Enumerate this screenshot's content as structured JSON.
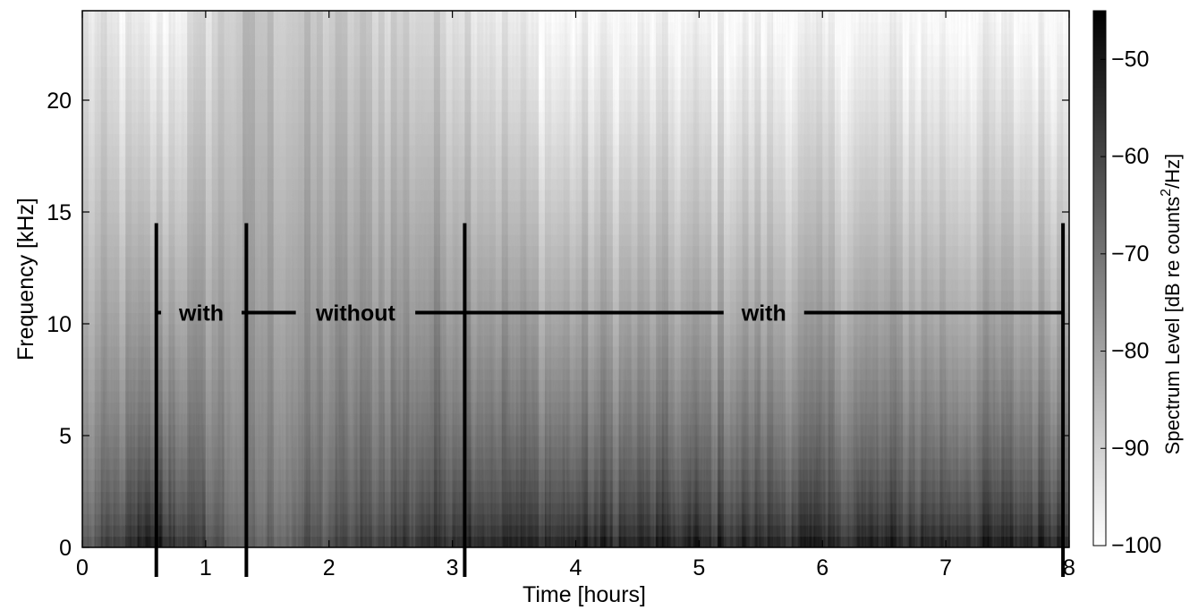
{
  "chart_data": {
    "type": "heatmap",
    "title": "",
    "xlabel": "Time [hours]",
    "ylabel": "Frequency [kHz]",
    "xlim": [
      0,
      8
    ],
    "ylim": [
      0,
      24
    ],
    "xticks": [
      "0",
      "1",
      "2",
      "3",
      "4",
      "5",
      "6",
      "7",
      "8"
    ],
    "yticks": [
      "0",
      "5",
      "10",
      "15",
      "20"
    ],
    "colorbar": {
      "label": "Spectrum Level [dB re counts",
      "label_superscript": "2",
      "label_suffix": "/Hz]",
      "range": [
        -100,
        -45
      ],
      "ticks": [
        "-100",
        "-90",
        "-80",
        "-70",
        "-60",
        "-50"
      ],
      "colormap": "gray-reversed"
    },
    "segment_markers_hours": [
      0.6,
      1.33,
      3.1,
      7.95
    ],
    "annotation_line_khz": 10.5,
    "annotations": [
      {
        "label": "with",
        "start_hours": 0.6,
        "end_hours": 1.33
      },
      {
        "label": "without",
        "start_hours": 1.33,
        "end_hours": 3.1
      },
      {
        "label": "with",
        "start_hours": 3.1,
        "end_hours": 7.95
      }
    ],
    "intensity_profile": [
      {
        "t_hours": 0.0,
        "level_at_0khz_db": -62,
        "level_at_24khz_db": -95
      },
      {
        "t_hours": 0.6,
        "level_at_0khz_db": -45,
        "level_at_24khz_db": -100
      },
      {
        "t_hours": 1.33,
        "level_at_0khz_db": -65,
        "level_at_24khz_db": -87
      },
      {
        "t_hours": 3.1,
        "level_at_0khz_db": -47,
        "level_at_24khz_db": -92
      },
      {
        "t_hours": 3.75,
        "level_at_0khz_db": -47,
        "level_at_24khz_db": -100
      },
      {
        "t_hours": 8.0,
        "level_at_0khz_db": -47,
        "level_at_24khz_db": -100
      }
    ]
  }
}
